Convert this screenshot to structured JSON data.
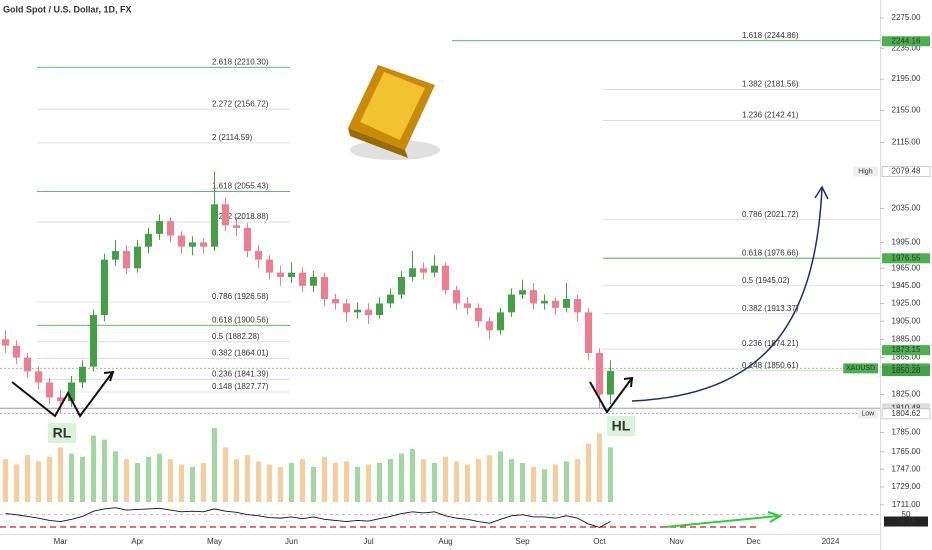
{
  "chart_data": {
    "type": "candlestick",
    "title": "Gold Spot / U.S. Dollar, 1D, FX",
    "log_scale": true,
    "ylim": [
      1686,
      2299
    ],
    "yticks": [
      {
        "value": 2275,
        "label": "2275.00"
      },
      {
        "value": 2235,
        "label": "2235.00"
      },
      {
        "value": 2195,
        "label": "2195.00"
      },
      {
        "value": 2155,
        "label": "2155.00"
      },
      {
        "value": 2115,
        "label": "2115.00"
      },
      {
        "value": 2035,
        "label": "2035.00"
      },
      {
        "value": 1995,
        "label": "1995.00"
      },
      {
        "value": 1965,
        "label": "1965.00"
      },
      {
        "value": 1945,
        "label": "1945.00"
      },
      {
        "value": 1925,
        "label": "1925.00"
      },
      {
        "value": 1905,
        "label": "1905.00"
      },
      {
        "value": 1885,
        "label": "1885.00"
      },
      {
        "value": 1865,
        "label": "1865.00"
      },
      {
        "value": 1825,
        "label": "1825.00"
      },
      {
        "value": 1785,
        "label": "1785.00"
      },
      {
        "value": 1765,
        "label": "1765.00"
      },
      {
        "value": 1747,
        "label": "1747.00"
      },
      {
        "value": 1729,
        "label": "1729.00"
      },
      {
        "value": 1711,
        "label": "1711.00"
      }
    ],
    "categories": [
      null,
      null,
      null,
      null,
      null,
      "Mar",
      null,
      null,
      null,
      null,
      null,
      null,
      "Apr",
      null,
      null,
      null,
      null,
      null,
      null,
      "May",
      null,
      null,
      null,
      null,
      null,
      null,
      "Jun",
      null,
      null,
      null,
      null,
      null,
      null,
      "Jul",
      null,
      null,
      null,
      null,
      null,
      null,
      "Aug",
      null,
      null,
      null,
      null,
      null,
      null,
      "Sep",
      null,
      null,
      null,
      null,
      null,
      null,
      "Oct",
      null,
      null,
      null,
      null,
      null,
      null,
      "Nov",
      null,
      null,
      null,
      null,
      null,
      null,
      "Dec",
      null,
      null,
      null,
      null,
      null,
      null,
      "2024",
      null,
      null,
      null,
      null
    ],
    "up_color": "#43a047",
    "down_color": "#ef7d8f",
    "volume_up_color": "#8fd18f",
    "volume_down_color": "#f8c48a",
    "open": [
      1885,
      1878,
      1865,
      1850,
      1838,
      1822,
      1818,
      1838,
      1855,
      1912,
      1975,
      1985,
      1965,
      1990,
      2005,
      2020,
      2003,
      1990,
      1995,
      1990,
      2040,
      2015,
      2012,
      1985,
      1975,
      1960,
      1955,
      1960,
      1945,
      1955,
      1930,
      1925,
      1915,
      1918,
      1912,
      1925,
      1935,
      1955,
      1965,
      1960,
      1968,
      1940,
      1925,
      1920,
      1905,
      1895,
      1915,
      1935,
      1940,
      1925,
      1928,
      1920,
      1930,
      1915,
      1870,
      1825,
      null,
      null,
      null,
      null,
      null,
      null,
      null,
      null,
      null,
      null,
      null,
      null,
      null,
      null,
      null,
      null,
      null,
      null,
      null,
      null,
      null,
      null,
      null,
      null
    ],
    "high": [
      1895,
      1884,
      1870,
      1856,
      1843,
      1830,
      1845,
      1862,
      1918,
      1982,
      1998,
      1992,
      1998,
      2012,
      2028,
      2025,
      2008,
      2002,
      2000,
      2079.48,
      2048,
      2025,
      2018,
      1992,
      1980,
      1968,
      1972,
      1966,
      1962,
      1960,
      1936,
      1930,
      1926,
      1925,
      1932,
      1942,
      1962,
      1985,
      1972,
      1980,
      1972,
      1945,
      1932,
      1925,
      1910,
      1920,
      1942,
      1952,
      1948,
      1935,
      1932,
      1948,
      1935,
      1920,
      1875,
      1862,
      null,
      null,
      null,
      null,
      null,
      null,
      null,
      null,
      null,
      null,
      null,
      null,
      null,
      null,
      null,
      null,
      null,
      null,
      null,
      null,
      null,
      null,
      null,
      null
    ],
    "low": [
      1870,
      1858,
      1843,
      1830,
      1815,
      1804.62,
      1812,
      1832,
      1850,
      1905,
      1968,
      1958,
      1960,
      1982,
      1998,
      1995,
      1982,
      1980,
      1982,
      1985,
      2008,
      2002,
      1978,
      1965,
      1952,
      1945,
      1948,
      1938,
      1938,
      1922,
      1918,
      1905,
      1908,
      1902,
      1908,
      1920,
      1930,
      1950,
      1952,
      1955,
      1935,
      1918,
      1912,
      1898,
      1885,
      1890,
      1910,
      1930,
      1918,
      1918,
      1912,
      1915,
      1905,
      1862,
      1810.48,
      1815,
      null,
      null,
      null,
      null,
      null,
      null,
      null,
      null,
      null,
      null,
      null,
      null,
      null,
      null,
      null,
      null,
      null,
      null,
      null,
      null,
      null,
      null,
      null,
      null
    ],
    "close": [
      1878,
      1865,
      1850,
      1838,
      1822,
      1818,
      1838,
      1855,
      1912,
      1975,
      1985,
      1965,
      1990,
      2005,
      2020,
      2003,
      1990,
      1995,
      1990,
      2040,
      2015,
      2012,
      1985,
      1975,
      1960,
      1955,
      1960,
      1945,
      1955,
      1930,
      1925,
      1915,
      1918,
      1912,
      1925,
      1935,
      1955,
      1965,
      1960,
      1968,
      1940,
      1925,
      1920,
      1905,
      1895,
      1915,
      1935,
      1940,
      1925,
      1928,
      1920,
      1930,
      1915,
      1870,
      1825,
      1850.28,
      null,
      null,
      null,
      null,
      null,
      null,
      null,
      null,
      null,
      null,
      null,
      null,
      null,
      null,
      null,
      null,
      null,
      null,
      null,
      null,
      null,
      null,
      null,
      null
    ],
    "volume": [
      55,
      48,
      60,
      52,
      58,
      70,
      62,
      58,
      85,
      80,
      65,
      55,
      50,
      58,
      62,
      55,
      48,
      45,
      50,
      95,
      70,
      55,
      60,
      52,
      48,
      45,
      50,
      55,
      45,
      58,
      50,
      52,
      45,
      48,
      50,
      55,
      62,
      68,
      55,
      50,
      58,
      52,
      48,
      55,
      60,
      65,
      55,
      50,
      45,
      42,
      48,
      52,
      55,
      75,
      88,
      70,
      null,
      null,
      null,
      null,
      null,
      null,
      null,
      null,
      null,
      null,
      null,
      null,
      null,
      null,
      null,
      null,
      null,
      null,
      null,
      null,
      null,
      null,
      null,
      null
    ],
    "oscillator": {
      "values": [
        52,
        50,
        47,
        44,
        40,
        38,
        42,
        47,
        56,
        60,
        62,
        58,
        59,
        60,
        61,
        58,
        55,
        56,
        55,
        60,
        56,
        54,
        50,
        48,
        45,
        44,
        46,
        43,
        46,
        42,
        40,
        38,
        40,
        39,
        43,
        47,
        52,
        55,
        53,
        55,
        48,
        44,
        42,
        38,
        35,
        42,
        48,
        50,
        46,
        46,
        44,
        48,
        44,
        34,
        28,
        38.16,
        null,
        null,
        null,
        null,
        null,
        null,
        null,
        null,
        null,
        null,
        null,
        null,
        null,
        null,
        null,
        null,
        null,
        null,
        null,
        null,
        null,
        null,
        null,
        null
      ],
      "ylim": [
        20,
        65
      ],
      "yticks": [
        50
      ],
      "color": "#111",
      "level_color": "#e53935",
      "arrow_color": "#2ecc40"
    },
    "fib_left": [
      {
        "label": "2.618 (2210.30)",
        "value": 2210.3,
        "color": "#2e9e3e"
      },
      {
        "label": "2.272 (2156.72)",
        "value": 2156.72,
        "color": "#aaa"
      },
      {
        "label": "2 (2114.59)",
        "value": 2114.59,
        "color": "#aaa"
      },
      {
        "label": "1.618 (2055.43)",
        "value": 2055.43,
        "color": "#2e9e3e"
      },
      {
        "label": "1.272 (2018.88)",
        "value": 2018.88,
        "color": "#aaa"
      },
      {
        "label": "0.786 (1926.58)",
        "value": 1926.58,
        "color": "#aaa"
      },
      {
        "label": "0.618 (1900.56)",
        "value": 1900.56,
        "color": "#2e9e3e"
      },
      {
        "label": "0.5 (1882.28)",
        "value": 1882.28,
        "color": "#aaa"
      },
      {
        "label": "0.382 (1864.01)",
        "value": 1864.01,
        "color": "#aaa"
      },
      {
        "label": "0.236 (1841.39)",
        "value": 1841.39,
        "color": "#aaa"
      },
      {
        "label": "0.148 (1827.77)",
        "value": 1827.77,
        "color": "#aaa"
      }
    ],
    "fib_right": [
      {
        "label": "1.618 (2244.86)",
        "value": 2244.86,
        "color": "#2e9e3e"
      },
      {
        "label": "1.382 (2181.56)",
        "value": 2181.56,
        "color": "#aaa"
      },
      {
        "label": "1.236 (2142.41)",
        "value": 2142.41,
        "color": "#aaa"
      },
      {
        "label": "0.786 (2021.72)",
        "value": 2021.72,
        "color": "#aaa"
      },
      {
        "label": "0.618 (1976.66)",
        "value": 1976.66,
        "color": "#2e9e3e"
      },
      {
        "label": "0.5 (1945.02)",
        "value": 1945.02,
        "color": "#aaa"
      },
      {
        "label": "0.382 (1913.37)",
        "value": 1913.37,
        "color": "#aaa"
      },
      {
        "label": "0.236 (1874.21)",
        "value": 1874.21,
        "color": "#aaa"
      },
      {
        "label": "0.148 (1850.61)",
        "value": 1850.61,
        "color": "#aaa"
      }
    ],
    "tags": [
      {
        "value": 2244.16,
        "color": "#4caf50",
        "text_color": "#fff"
      },
      {
        "value": 2079.48,
        "color": "#fff",
        "text_color": "#333",
        "note": "High"
      },
      {
        "value": 1976.55,
        "color": "#4caf50",
        "text_color": "#fff"
      },
      {
        "value": 1873.15,
        "color": "#4caf50",
        "text_color": "#fff"
      },
      {
        "value": 1853.21,
        "color": "#4caf50",
        "text_color": "#fff",
        "note": "XAUUSD",
        "line": "dotted",
        "line_color": "#8fd18f"
      },
      {
        "value": 1850.28,
        "color": "#43a047",
        "text_color": "#fff"
      },
      {
        "value": 1810.48,
        "color": "#ddd",
        "text_color": "#333",
        "line": "solid",
        "line_color": "#9e9e9e"
      },
      {
        "value": 1805.02,
        "color": "#555",
        "text_color": "#fff",
        "line": "dotted",
        "line_color": "#9e9e9e"
      },
      {
        "value": 1804.62,
        "color": "#fff",
        "text_color": "#333",
        "note": "Low"
      }
    ],
    "annotations": [
      {
        "text": "RL",
        "color": "#e53935",
        "background": "#d9f2d9"
      },
      {
        "text": "HL",
        "color": "#e53935",
        "background": "#d9f2d9"
      }
    ]
  }
}
